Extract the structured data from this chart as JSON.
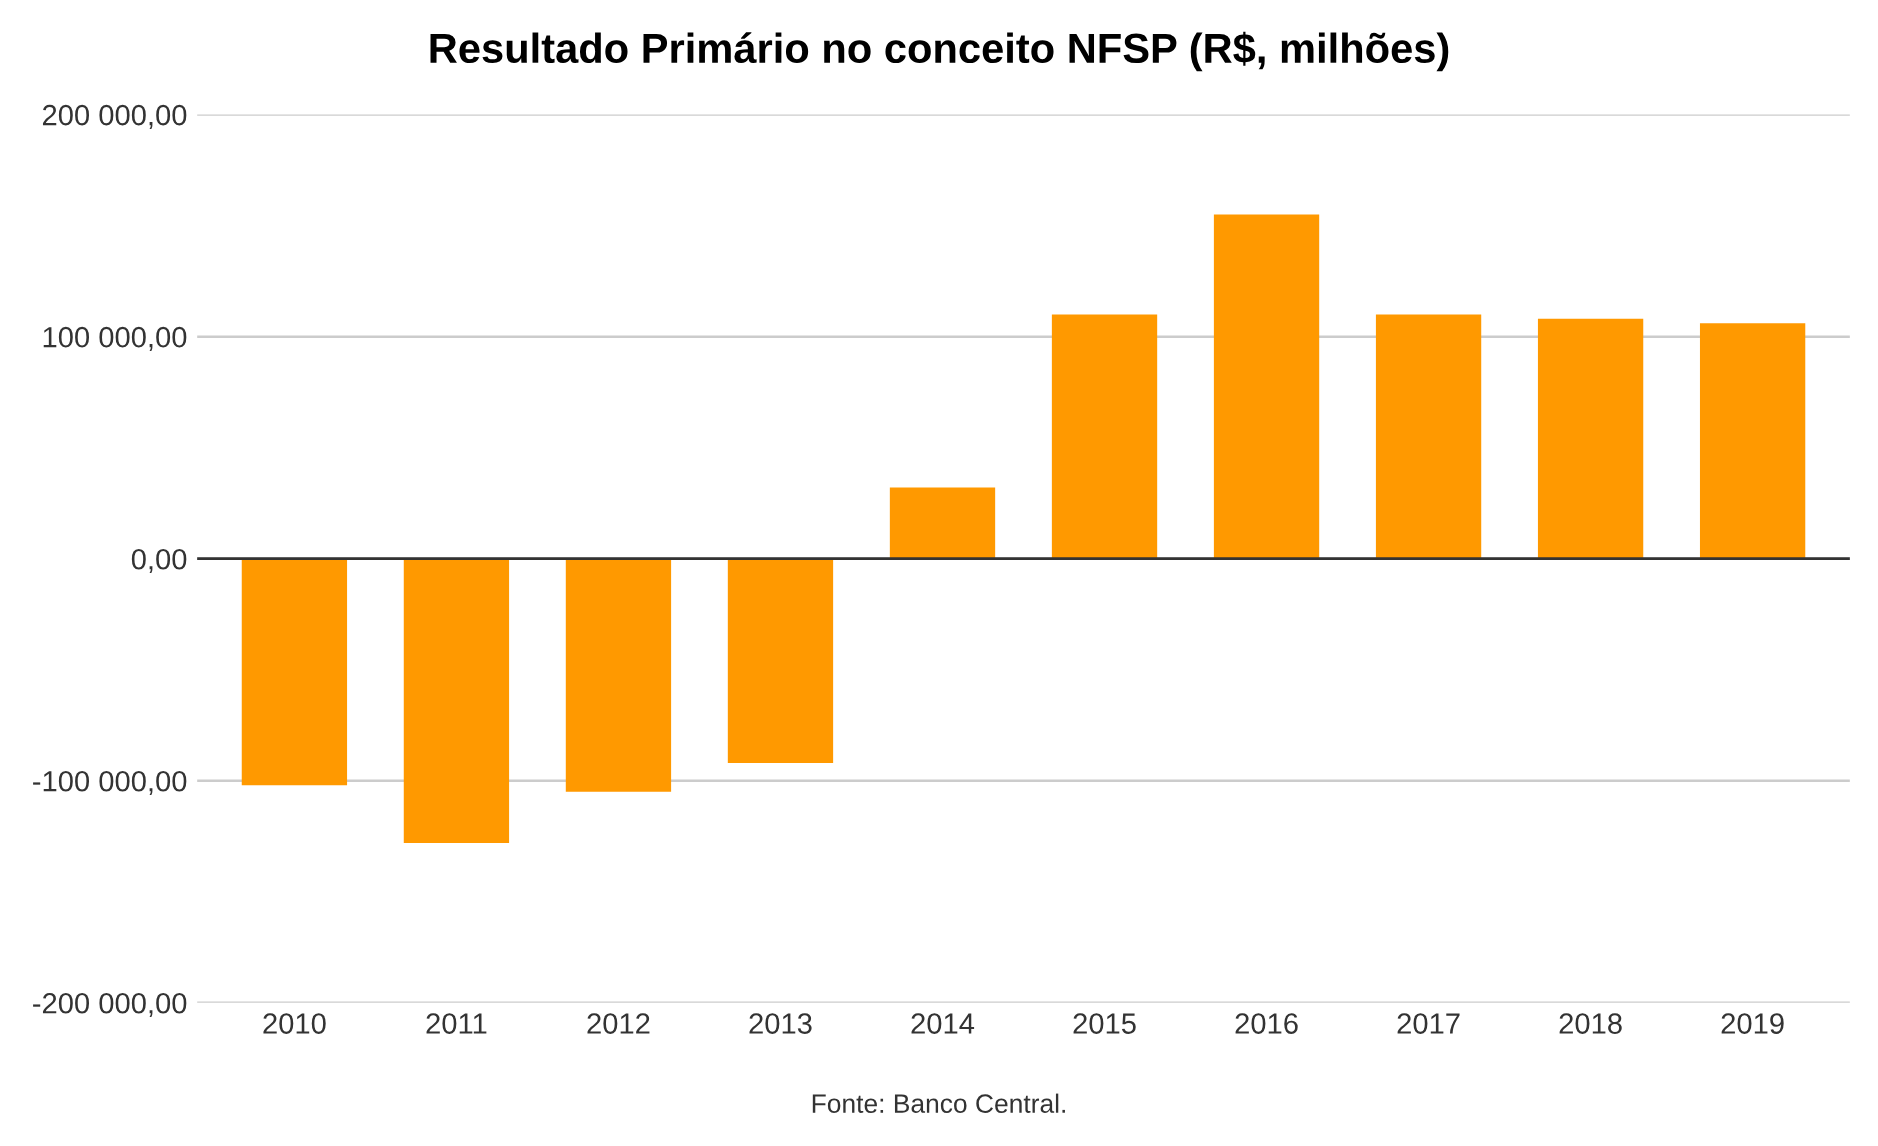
{
  "chart_data": {
    "type": "bar",
    "title": "Resultado Primário no conceito NFSP (R$, milhões)",
    "categories": [
      "2010",
      "2011",
      "2012",
      "2013",
      "2014",
      "2015",
      "2016",
      "2017",
      "2018",
      "2019"
    ],
    "values": [
      -102000,
      -128000,
      -105000,
      -92000,
      32000,
      110000,
      155000,
      110000,
      108000,
      106000
    ],
    "color": "#ff9900",
    "ylim": [
      -200000,
      200000
    ],
    "yticks": [
      {
        "value": -200000,
        "label": "-200 000,00"
      },
      {
        "value": -100000,
        "label": "-100 000,00"
      },
      {
        "value": 0,
        "label": "0,00"
      },
      {
        "value": 100000,
        "label": "100 000,00"
      },
      {
        "value": 200000,
        "label": "200 000,00"
      }
    ],
    "grid": "y",
    "legend": false,
    "annotations": [
      "Fonte: Banco Central."
    ]
  }
}
